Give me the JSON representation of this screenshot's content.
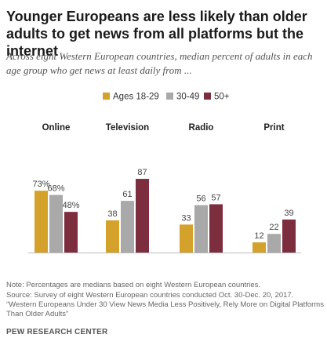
{
  "title": "Younger Europeans are less likely than older adults to get news from all platforms but the internet",
  "subtitle": "Across eight Western European countries, median percent of adults in each age group who get news at least daily from ...",
  "chart_data": {
    "type": "bar",
    "categories": [
      "Online",
      "Television",
      "Radio",
      "Print"
    ],
    "series": [
      {
        "name": "Ages 18-29",
        "values": [
          73,
          38,
          33,
          12
        ],
        "labels": [
          "73%",
          "38",
          "33",
          "12"
        ],
        "color": "#D4A12A"
      },
      {
        "name": "30-49",
        "values": [
          68,
          61,
          56,
          22
        ],
        "labels": [
          "68%",
          "61",
          "56",
          "22"
        ],
        "color": "#A9A9A9"
      },
      {
        "name": "50+",
        "values": [
          48,
          87,
          57,
          39
        ],
        "labels": [
          "48%",
          "87",
          "57",
          "39"
        ],
        "color": "#7D2E3E"
      }
    ],
    "ylim": [
      0,
      100
    ],
    "legend_position": "top",
    "grid": false
  },
  "footer": {
    "note": "Note: Percentages are medians based on eight Western European countries.",
    "source": "Source: Survey of eight Western European countries conducted Oct. 30-Dec. 20, 2017.",
    "report": "“Western Europeans Under 30 View News Media Less Positively, Rely More on Digital Platforms Than Older Adults”",
    "org": "PEW RESEARCH CENTER"
  }
}
